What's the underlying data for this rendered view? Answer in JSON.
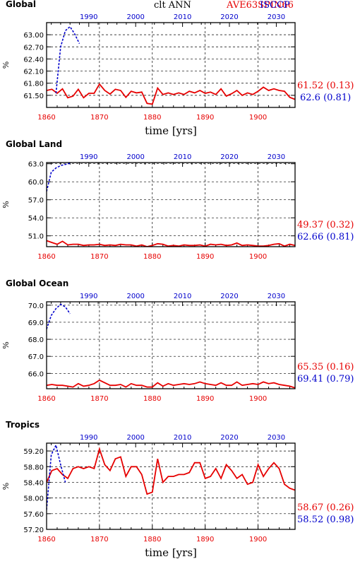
{
  "header": {
    "center_label": "clt ANN",
    "red_label": "AVE63SPIN66",
    "blue_label": "ISCCP"
  },
  "colors": {
    "red": "#e60000",
    "blue": "#0000cc",
    "grid": "#000000"
  },
  "chart_data": [
    {
      "type": "line",
      "title": "Global",
      "xlabel": "time [yrs]",
      "ylabel": "%",
      "xlim_bottom": [
        1860,
        1907
      ],
      "xticks_bottom": [
        "1860",
        "1870",
        "1880",
        "1890",
        "1900"
      ],
      "xticks_bottom_values": [
        1860,
        1870,
        1880,
        1890,
        1900
      ],
      "xlim_top": [
        1981,
        2034
      ],
      "xticks_top": [
        "1990",
        "2000",
        "2010",
        "2020",
        "2030"
      ],
      "xticks_top_values": [
        1990,
        2000,
        2010,
        2020,
        2030
      ],
      "ylim": [
        61.2,
        63.3
      ],
      "yticks": [
        "61.50",
        "61.80",
        "62.10",
        "62.40",
        "62.70",
        "63.00"
      ],
      "ytick_values": [
        61.5,
        61.8,
        62.1,
        62.4,
        62.7,
        63.0
      ],
      "series": [
        {
          "name": "AVE63SPIN66",
          "axis": "bottom",
          "x": [
            1860,
            1861,
            1862,
            1863,
            1864,
            1865,
            1866,
            1867,
            1868,
            1869,
            1870,
            1871,
            1872,
            1873,
            1874,
            1875,
            1876,
            1877,
            1878,
            1879,
            1880,
            1881,
            1882,
            1883,
            1884,
            1885,
            1886,
            1887,
            1888,
            1889,
            1890,
            1891,
            1892,
            1893,
            1894,
            1895,
            1896,
            1897,
            1898,
            1899,
            1900,
            1901,
            1902,
            1903,
            1904,
            1905,
            1906,
            1907
          ],
          "y": [
            61.62,
            61.65,
            61.55,
            61.66,
            61.44,
            61.48,
            61.65,
            61.44,
            61.55,
            61.55,
            61.78,
            61.62,
            61.53,
            61.65,
            61.62,
            61.45,
            61.6,
            61.56,
            61.58,
            61.3,
            61.28,
            61.68,
            61.52,
            61.56,
            61.52,
            61.56,
            61.52,
            61.6,
            61.56,
            61.62,
            61.55,
            61.58,
            61.52,
            61.66,
            61.48,
            61.54,
            61.62,
            61.5,
            61.56,
            61.52,
            61.6,
            61.7,
            61.62,
            61.66,
            61.62,
            61.6,
            61.45,
            61.4
          ]
        },
        {
          "name": "ISCCP",
          "axis": "top",
          "x": [
            1983,
            1984,
            1985,
            1986,
            1987,
            1988
          ],
          "y": [
            61.55,
            62.7,
            63.1,
            63.2,
            63.02,
            62.78
          ]
        }
      ],
      "stats": [
        {
          "series": "AVE63SPIN66",
          "text": "61.52 (0.13)"
        },
        {
          "series": "ISCCP",
          "text": "62.6 (0.81)"
        }
      ]
    },
    {
      "type": "line",
      "title": "Global Land",
      "xlabel": "",
      "ylabel": "%",
      "xlim_bottom": [
        1860,
        1907
      ],
      "xticks_bottom": [
        "1860",
        "1870",
        "1880",
        "1890",
        "1900"
      ],
      "xticks_bottom_values": [
        1860,
        1870,
        1880,
        1890,
        1900
      ],
      "xlim_top": [
        1981,
        2034
      ],
      "xticks_top": [
        "1990",
        "2000",
        "2010",
        "2020",
        "2030"
      ],
      "xticks_top_values": [
        1990,
        2000,
        2010,
        2020,
        2030
      ],
      "ylim": [
        49.2,
        63.2
      ],
      "yticks": [
        "51.0",
        "54.0",
        "57.0",
        "60.0",
        "63.0"
      ],
      "ytick_values": [
        51.0,
        54.0,
        57.0,
        60.0,
        63.0
      ],
      "series": [
        {
          "name": "AVE63SPIN66",
          "axis": "bottom",
          "x": [
            1860,
            1861,
            1862,
            1863,
            1864,
            1865,
            1866,
            1867,
            1868,
            1869,
            1870,
            1871,
            1872,
            1873,
            1874,
            1875,
            1876,
            1877,
            1878,
            1879,
            1880,
            1881,
            1882,
            1883,
            1884,
            1885,
            1886,
            1887,
            1888,
            1889,
            1890,
            1891,
            1892,
            1893,
            1894,
            1895,
            1896,
            1897,
            1898,
            1899,
            1900,
            1901,
            1902,
            1903,
            1904,
            1905,
            1906,
            1907
          ],
          "y": [
            50.2,
            49.9,
            49.6,
            50.1,
            49.5,
            49.6,
            49.6,
            49.4,
            49.5,
            49.5,
            49.6,
            49.4,
            49.5,
            49.4,
            49.6,
            49.5,
            49.5,
            49.3,
            49.5,
            49.2,
            49.4,
            49.7,
            49.6,
            49.3,
            49.4,
            49.3,
            49.5,
            49.4,
            49.4,
            49.5,
            49.3,
            49.6,
            49.5,
            49.6,
            49.4,
            49.5,
            49.8,
            49.4,
            49.5,
            49.4,
            49.3,
            49.3,
            49.4,
            49.6,
            49.7,
            49.3,
            49.6,
            49.4
          ]
        },
        {
          "name": "ISCCP",
          "axis": "top",
          "x": [
            1981,
            1982,
            1983,
            1984,
            1985,
            1986
          ],
          "y": [
            58.4,
            61.6,
            62.3,
            62.7,
            62.9,
            63.1
          ]
        }
      ],
      "stats": [
        {
          "series": "AVE63SPIN66",
          "text": "49.37 (0.32)"
        },
        {
          "series": "ISCCP",
          "text": "62.66 (0.81)"
        }
      ]
    },
    {
      "type": "line",
      "title": "Global Ocean",
      "xlabel": "",
      "ylabel": "%",
      "xlim_bottom": [
        1860,
        1907
      ],
      "xticks_bottom": [
        "1860",
        "1870",
        "1880",
        "1890",
        "1900"
      ],
      "xticks_bottom_values": [
        1860,
        1870,
        1880,
        1890,
        1900
      ],
      "xlim_top": [
        1981,
        2034
      ],
      "xticks_top": [
        "1990",
        "2000",
        "2010",
        "2020",
        "2030"
      ],
      "xticks_top_values": [
        1990,
        2000,
        2010,
        2020,
        2030
      ],
      "ylim": [
        65.1,
        70.2
      ],
      "yticks": [
        "66.0",
        "67.0",
        "68.0",
        "69.0",
        "70.0"
      ],
      "ytick_values": [
        66.0,
        67.0,
        68.0,
        69.0,
        70.0
      ],
      "series": [
        {
          "name": "AVE63SPIN66",
          "axis": "bottom",
          "x": [
            1860,
            1861,
            1862,
            1863,
            1864,
            1865,
            1866,
            1867,
            1868,
            1869,
            1870,
            1871,
            1872,
            1873,
            1874,
            1875,
            1876,
            1877,
            1878,
            1879,
            1880,
            1881,
            1882,
            1883,
            1884,
            1885,
            1886,
            1887,
            1888,
            1889,
            1890,
            1891,
            1892,
            1893,
            1894,
            1895,
            1896,
            1897,
            1898,
            1899,
            1900,
            1901,
            1902,
            1903,
            1904,
            1905,
            1906,
            1907
          ],
          "y": [
            65.3,
            65.35,
            65.3,
            65.3,
            65.25,
            65.2,
            65.4,
            65.25,
            65.3,
            65.4,
            65.6,
            65.45,
            65.3,
            65.3,
            65.35,
            65.2,
            65.4,
            65.3,
            65.3,
            65.2,
            65.2,
            65.45,
            65.25,
            65.4,
            65.3,
            65.35,
            65.4,
            65.35,
            65.4,
            65.5,
            65.4,
            65.35,
            65.3,
            65.45,
            65.3,
            65.3,
            65.5,
            65.3,
            65.35,
            65.4,
            65.35,
            65.5,
            65.4,
            65.45,
            65.35,
            65.3,
            65.25,
            65.15
          ]
        },
        {
          "name": "ISCCP",
          "axis": "top",
          "x": [
            1981,
            1982,
            1983,
            1984,
            1985,
            1986
          ],
          "y": [
            68.6,
            69.4,
            69.8,
            70.05,
            69.9,
            69.5
          ]
        }
      ],
      "stats": [
        {
          "series": "AVE63SPIN66",
          "text": "65.35 (0.16)"
        },
        {
          "series": "ISCCP",
          "text": "69.41 (0.79)"
        }
      ]
    },
    {
      "type": "line",
      "title": "Tropics",
      "xlabel": "time [yrs]",
      "ylabel": "%",
      "xlim_bottom": [
        1860,
        1907
      ],
      "xticks_bottom": [
        "1860",
        "1870",
        "1880",
        "1890",
        "1900"
      ],
      "xticks_bottom_values": [
        1860,
        1870,
        1880,
        1890,
        1900
      ],
      "xlim_top": [
        1981,
        2034
      ],
      "xticks_top": [
        "1990",
        "2000",
        "2010",
        "2020",
        "2030"
      ],
      "xticks_top_values": [
        1990,
        2000,
        2010,
        2020,
        2030
      ],
      "ylim": [
        57.2,
        59.4
      ],
      "yticks": [
        "57.20",
        "57.60",
        "58.00",
        "58.40",
        "58.80",
        "59.20"
      ],
      "ytick_values": [
        57.2,
        57.6,
        58.0,
        58.4,
        58.8,
        59.2
      ],
      "series": [
        {
          "name": "AVE63SPIN66",
          "axis": "bottom",
          "x": [
            1860,
            1861,
            1862,
            1863,
            1864,
            1865,
            1866,
            1867,
            1868,
            1869,
            1870,
            1871,
            1872,
            1873,
            1874,
            1875,
            1876,
            1877,
            1878,
            1879,
            1880,
            1881,
            1882,
            1883,
            1884,
            1885,
            1886,
            1887,
            1888,
            1889,
            1890,
            1891,
            1892,
            1893,
            1894,
            1895,
            1896,
            1897,
            1898,
            1899,
            1900,
            1901,
            1902,
            1903,
            1904,
            1905,
            1906,
            1907
          ],
          "y": [
            58.4,
            58.7,
            58.75,
            58.6,
            58.5,
            58.75,
            58.8,
            58.75,
            58.8,
            58.75,
            59.25,
            58.85,
            58.7,
            59.0,
            59.05,
            58.55,
            58.8,
            58.8,
            58.6,
            58.1,
            58.15,
            59.0,
            58.4,
            58.55,
            58.55,
            58.6,
            58.6,
            58.65,
            58.9,
            58.9,
            58.5,
            58.55,
            58.75,
            58.5,
            58.85,
            58.7,
            58.5,
            58.6,
            58.35,
            58.4,
            58.85,
            58.55,
            58.75,
            58.9,
            58.75,
            58.35,
            58.25,
            58.2
          ]
        },
        {
          "name": "ISCCP",
          "axis": "top",
          "x": [
            1981,
            1982,
            1983,
            1984,
            1985
          ],
          "y": [
            57.7,
            59.1,
            59.35,
            58.85,
            58.4
          ]
        }
      ],
      "stats": [
        {
          "series": "AVE63SPIN66",
          "text": "58.67 (0.26)"
        },
        {
          "series": "ISCCP",
          "text": "58.52 (0.98)"
        }
      ]
    }
  ]
}
